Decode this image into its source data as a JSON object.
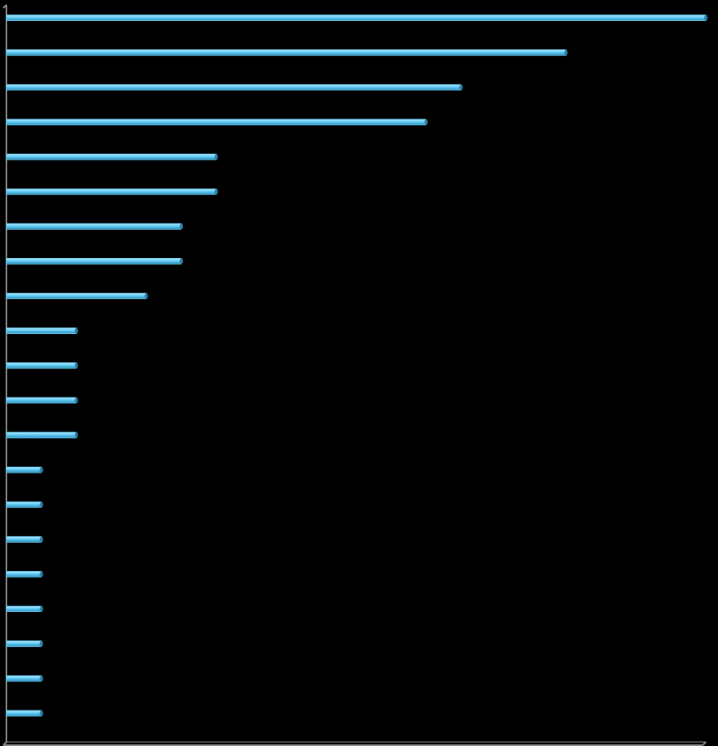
{
  "chart_data": {
    "type": "barh",
    "categories": [
      null,
      null,
      null,
      null,
      null,
      null,
      null,
      null,
      null,
      null,
      null,
      null,
      null,
      null,
      null,
      null,
      null,
      null,
      null,
      null,
      null
    ],
    "values": [
      20,
      16,
      13,
      12,
      6,
      6,
      5,
      5,
      4,
      2,
      2,
      2,
      2,
      1,
      1,
      1,
      1,
      1,
      1,
      1,
      1
    ],
    "color": "#62ccf6",
    "xlim": [
      0,
      20
    ]
  }
}
